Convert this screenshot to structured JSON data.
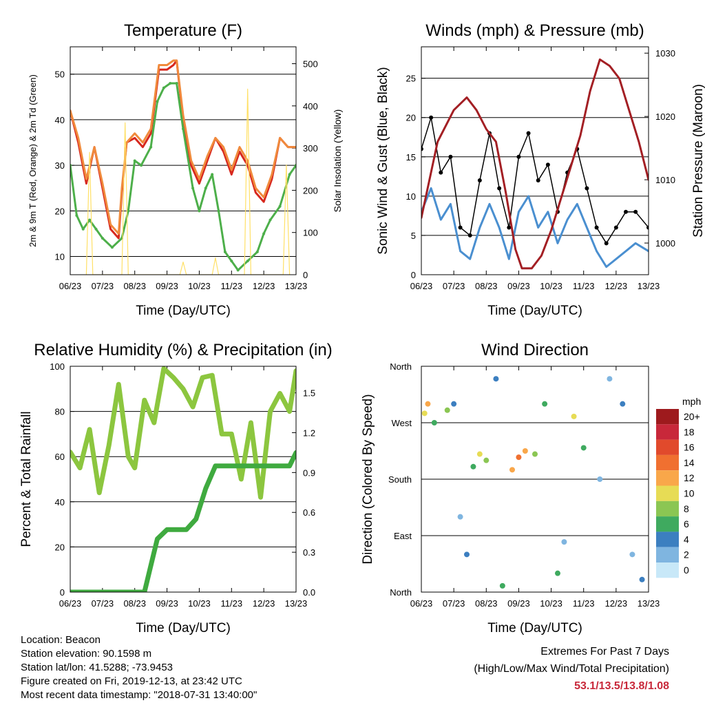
{
  "chart_data": [
    {
      "type": "line",
      "title": "Temperature (F)",
      "xlabel": "Time (Day/UTC)",
      "ylabel": "2m & 9m T (Red, Orange) & 2m Td (Green)",
      "y2label": "Solar Insolation (Yellow)",
      "x_ticks": [
        "06/23",
        "07/23",
        "08/23",
        "09/23",
        "10/23",
        "11/23",
        "12/23",
        "13/23"
      ],
      "ylim": [
        6,
        56
      ],
      "y_ticks": [
        10,
        20,
        30,
        40,
        50
      ],
      "y2lim": [
        0,
        540
      ],
      "y2_ticks": [
        0,
        100,
        200,
        300,
        400,
        500
      ],
      "grid": true,
      "series": [
        {
          "name": "2m T",
          "color": "#d7281e",
          "axis": "left",
          "x": [
            0,
            0.25,
            0.5,
            0.75,
            1.0,
            1.25,
            1.5,
            1.6,
            1.75,
            2.0,
            2.25,
            2.5,
            2.75,
            3.0,
            3.2,
            3.3,
            3.5,
            3.75,
            4.0,
            4.25,
            4.5,
            4.75,
            5.0,
            5.25,
            5.5,
            5.75,
            6.0,
            6.25,
            6.5,
            6.75,
            7.0
          ],
          "values": [
            42,
            35,
            26,
            34,
            25,
            16,
            14,
            24,
            35,
            36,
            34,
            37,
            51,
            51,
            52,
            53,
            40,
            30,
            26,
            31,
            36,
            33,
            28,
            33,
            30,
            24,
            22,
            27,
            36,
            34,
            34
          ]
        },
        {
          "name": "9m T",
          "color": "#f08a3c",
          "axis": "left",
          "x": [
            0,
            0.25,
            0.5,
            0.75,
            1.0,
            1.25,
            1.5,
            1.6,
            1.75,
            2.0,
            2.25,
            2.5,
            2.75,
            3.0,
            3.2,
            3.3,
            3.5,
            3.75,
            4.0,
            4.25,
            4.5,
            4.75,
            5.0,
            5.25,
            5.5,
            5.75,
            6.0,
            6.25,
            6.5,
            6.75,
            7.0
          ],
          "values": [
            42,
            36,
            27,
            34,
            26,
            17,
            15,
            25,
            35,
            37,
            35,
            38,
            52,
            52,
            53,
            53,
            41,
            31,
            27,
            32,
            36,
            34,
            29,
            34,
            31,
            25,
            23,
            28,
            36,
            34,
            34
          ]
        },
        {
          "name": "2m Td",
          "color": "#4daf4a",
          "axis": "left",
          "x": [
            0,
            0.2,
            0.4,
            0.6,
            0.8,
            1.0,
            1.3,
            1.6,
            1.8,
            2.0,
            2.2,
            2.5,
            2.7,
            2.9,
            3.1,
            3.3,
            3.5,
            3.8,
            4.0,
            4.2,
            4.4,
            4.6,
            4.8,
            5.0,
            5.2,
            5.5,
            5.8,
            6.0,
            6.2,
            6.5,
            6.8,
            7.0
          ],
          "values": [
            30,
            19,
            16,
            18,
            16,
            14,
            12,
            14,
            20,
            31,
            30,
            34,
            44,
            47,
            48,
            48,
            38,
            25,
            20,
            25,
            28,
            20,
            11,
            9,
            7,
            9,
            11,
            15,
            18,
            21,
            28,
            30
          ]
        },
        {
          "name": "Solar Insolation",
          "color": "#ffe066",
          "axis": "right",
          "x": [
            0.5,
            0.6,
            0.7,
            1.6,
            1.7,
            1.8,
            3.4,
            3.5,
            3.6,
            4.4,
            4.5,
            4.6,
            5.4,
            5.5,
            5.6,
            6.6,
            6.7,
            6.8
          ],
          "values": [
            0,
            290,
            0,
            0,
            360,
            0,
            0,
            30,
            0,
            0,
            40,
            0,
            0,
            440,
            0,
            0,
            260,
            0
          ]
        }
      ]
    },
    {
      "type": "line",
      "title": "Winds (mph) & Pressure (mb)",
      "xlabel": "Time (Day/UTC)",
      "ylabel": "Sonic Wind & Gust (Blue, Black)",
      "y2label": "Station Pressure (Maroon)",
      "x_ticks": [
        "06/23",
        "07/23",
        "08/23",
        "09/23",
        "10/23",
        "11/23",
        "12/23",
        "13/23"
      ],
      "ylim": [
        0,
        29
      ],
      "y_ticks": [
        0,
        5,
        10,
        15,
        20,
        25
      ],
      "y2lim": [
        995,
        1031
      ],
      "y2_ticks": [
        1000,
        1010,
        1020,
        1030
      ],
      "grid": true,
      "series": [
        {
          "name": "Sonic Wind",
          "color": "#4a8fd0",
          "axis": "left",
          "x": [
            0,
            0.3,
            0.6,
            0.9,
            1.2,
            1.5,
            1.8,
            2.1,
            2.4,
            2.7,
            3.0,
            3.3,
            3.6,
            3.9,
            4.2,
            4.5,
            4.8,
            5.1,
            5.4,
            5.7,
            6.0,
            6.3,
            6.6,
            7.0
          ],
          "values": [
            8,
            11,
            7,
            9,
            3,
            2,
            6,
            9,
            6,
            2,
            8,
            10,
            6,
            8,
            4,
            7,
            9,
            6,
            3,
            1,
            2,
            3,
            4,
            3
          ]
        },
        {
          "name": "Gust",
          "color": "#000000",
          "axis": "left",
          "x": [
            0,
            0.3,
            0.6,
            0.9,
            1.2,
            1.5,
            1.8,
            2.1,
            2.4,
            2.7,
            3.0,
            3.3,
            3.6,
            3.9,
            4.2,
            4.5,
            4.8,
            5.1,
            5.4,
            5.7,
            6.0,
            6.3,
            6.6,
            7.0
          ],
          "values": [
            16,
            20,
            13,
            15,
            6,
            5,
            12,
            18,
            11,
            6,
            15,
            18,
            12,
            14,
            8,
            13,
            16,
            11,
            6,
            4,
            6,
            8,
            8,
            6
          ]
        },
        {
          "name": "Station Pressure",
          "color": "#a31f24",
          "axis": "right",
          "x": [
            0,
            0.5,
            1.0,
            1.4,
            1.7,
            2.0,
            2.3,
            2.6,
            2.9,
            3.1,
            3.4,
            3.7,
            4.0,
            4.3,
            4.6,
            4.9,
            5.2,
            5.5,
            5.8,
            6.1,
            6.4,
            6.7,
            7.0
          ],
          "values": [
            1004,
            1016,
            1021,
            1023,
            1021,
            1018,
            1016,
            1008,
            999,
            996,
            996,
            998,
            1002,
            1007,
            1012,
            1017,
            1024,
            1029,
            1028,
            1026,
            1021,
            1016,
            1010
          ]
        }
      ]
    },
    {
      "type": "line",
      "title": "Relative Humidity (%) & Precipitation (in)",
      "xlabel": "Time (Day/UTC)",
      "ylabel": "Percent & Total Rainfall",
      "x_ticks": [
        "06/23",
        "07/23",
        "08/23",
        "09/23",
        "10/23",
        "11/23",
        "12/23",
        "13/23"
      ],
      "ylim": [
        0,
        100
      ],
      "y_ticks": [
        0,
        20,
        40,
        60,
        80,
        100
      ],
      "y2lim": [
        0,
        1.7
      ],
      "y2_ticks": [
        0.0,
        0.3,
        0.6,
        0.9,
        1.2,
        1.5
      ],
      "y2_tick_labels": [
        "0.0",
        "0.3",
        "0.6",
        "0.9",
        "1.2",
        "1.5"
      ],
      "grid": true,
      "series": [
        {
          "name": "Relative Humidity",
          "color": "#8cc63f",
          "axis": "left",
          "x": [
            0,
            0.3,
            0.6,
            0.9,
            1.2,
            1.5,
            1.8,
            2.0,
            2.3,
            2.6,
            2.9,
            3.2,
            3.5,
            3.8,
            4.1,
            4.4,
            4.7,
            5.0,
            5.3,
            5.6,
            5.9,
            6.2,
            6.5,
            6.8,
            7.0
          ],
          "values": [
            62,
            55,
            72,
            44,
            65,
            92,
            60,
            55,
            85,
            75,
            99,
            95,
            90,
            82,
            95,
            96,
            70,
            70,
            50,
            75,
            42,
            80,
            88,
            80,
            98
          ]
        },
        {
          "name": "Total Precipitation",
          "color": "#3faa3f",
          "axis": "right",
          "x": [
            0,
            2.3,
            2.5,
            2.7,
            3.0,
            3.6,
            3.9,
            4.2,
            4.5,
            6.8,
            7.0
          ],
          "values": [
            0,
            0,
            0.2,
            0.4,
            0.47,
            0.47,
            0.55,
            0.78,
            0.95,
            0.95,
            1.05
          ]
        }
      ]
    },
    {
      "type": "scatter",
      "title": "Wind Direction",
      "xlabel": "Time (Day/UTC)",
      "ylabel": "Direction (Colored By Speed)",
      "x_ticks": [
        "06/23",
        "07/23",
        "08/23",
        "09/23",
        "10/23",
        "11/23",
        "12/23",
        "13/23"
      ],
      "y_ticks": [
        "North",
        "East",
        "South",
        "West",
        "North"
      ],
      "ylim": [
        0,
        360
      ],
      "grid": true,
      "colorbar": {
        "title": "mph",
        "labels": [
          "20+",
          "18",
          "16",
          "14",
          "12",
          "10",
          "8",
          "6",
          "4",
          "2",
          "0"
        ],
        "colors": [
          "#9e1a1d",
          "#c8283a",
          "#e14a2c",
          "#f07030",
          "#f9a74a",
          "#e7dc55",
          "#8bc653",
          "#3faa5f",
          "#3c7fc0",
          "#7fb5e0",
          "#c8e8f8"
        ]
      },
      "points": [
        {
          "x": 0.1,
          "y": 285,
          "speed": 10
        },
        {
          "x": 0.2,
          "y": 300,
          "speed": 12
        },
        {
          "x": 0.4,
          "y": 270,
          "speed": 6
        },
        {
          "x": 0.8,
          "y": 290,
          "speed": 8
        },
        {
          "x": 1.0,
          "y": 300,
          "speed": 4
        },
        {
          "x": 1.2,
          "y": 120,
          "speed": 2
        },
        {
          "x": 1.4,
          "y": 60,
          "speed": 4
        },
        {
          "x": 1.6,
          "y": 200,
          "speed": 6
        },
        {
          "x": 1.8,
          "y": 220,
          "speed": 10
        },
        {
          "x": 2.0,
          "y": 210,
          "speed": 8
        },
        {
          "x": 2.3,
          "y": 340,
          "speed": 4
        },
        {
          "x": 2.5,
          "y": 10,
          "speed": 6
        },
        {
          "x": 2.8,
          "y": 195,
          "speed": 12
        },
        {
          "x": 3.0,
          "y": 215,
          "speed": 14
        },
        {
          "x": 3.2,
          "y": 225,
          "speed": 12
        },
        {
          "x": 3.5,
          "y": 220,
          "speed": 8
        },
        {
          "x": 3.8,
          "y": 300,
          "speed": 6
        },
        {
          "x": 4.2,
          "y": 30,
          "speed": 6
        },
        {
          "x": 4.4,
          "y": 80,
          "speed": 2
        },
        {
          "x": 4.7,
          "y": 280,
          "speed": 10
        },
        {
          "x": 5.0,
          "y": 230,
          "speed": 6
        },
        {
          "x": 5.5,
          "y": 180,
          "speed": 2
        },
        {
          "x": 5.8,
          "y": 340,
          "speed": 2
        },
        {
          "x": 6.2,
          "y": 300,
          "speed": 4
        },
        {
          "x": 6.5,
          "y": 60,
          "speed": 2
        },
        {
          "x": 6.8,
          "y": 20,
          "speed": 4
        }
      ]
    }
  ],
  "footer": {
    "location": "Location: Beacon",
    "elevation": "Station elevation: 90.1598 m",
    "latlon": "Station lat/lon: 41.5288; -73.9453",
    "created": "Figure created on Fri, 2019-12-13, at 23:42 UTC",
    "timestamp": "Most recent data timestamp: \"2018-07-31 13:40:00\"",
    "extremes_title": "Extremes For Past 7 Days",
    "extremes_subtitle": "(High/Low/Max Wind/Total Precipitation)",
    "extremes_values": "53.1/13.5/13.8/1.08"
  }
}
